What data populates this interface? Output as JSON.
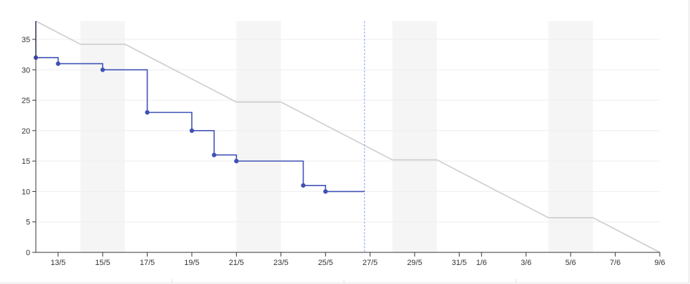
{
  "chart_data": {
    "type": "line",
    "title": "",
    "xlabel": "",
    "ylabel": "",
    "ylim": [
      0,
      38
    ],
    "yticks": [
      0,
      5,
      10,
      15,
      20,
      25,
      30,
      35
    ],
    "x_range": [
      "2024-05-12",
      "2024-06-09"
    ],
    "x_ticks": [
      {
        "date": "2024-05-13",
        "label": "13/5"
      },
      {
        "date": "2024-05-15",
        "label": "15/5"
      },
      {
        "date": "2024-05-17",
        "label": "17/5"
      },
      {
        "date": "2024-05-19",
        "label": "19/5"
      },
      {
        "date": "2024-05-21",
        "label": "21/5"
      },
      {
        "date": "2024-05-23",
        "label": "23/5"
      },
      {
        "date": "2024-05-25",
        "label": "25/5"
      },
      {
        "date": "2024-05-27",
        "label": "27/5"
      },
      {
        "date": "2024-05-29",
        "label": "29/5"
      },
      {
        "date": "2024-05-31",
        "label": "31/5"
      },
      {
        "date": "2024-06-01",
        "label": "1/6"
      },
      {
        "date": "2024-06-03",
        "label": "3/6"
      },
      {
        "date": "2024-06-05",
        "label": "5/6"
      },
      {
        "date": "2024-06-07",
        "label": "7/6"
      },
      {
        "date": "2024-06-09",
        "label": "9/6"
      }
    ],
    "non_working_periods": [
      [
        "2024-05-14",
        "2024-05-16"
      ],
      [
        "2024-05-21",
        "2024-05-23"
      ],
      [
        "2024-05-28",
        "2024-05-30"
      ],
      [
        "2024-06-04",
        "2024-06-06"
      ]
    ],
    "today": "2024-05-26 18:00",
    "grid": true,
    "legend": "none",
    "series": [
      {
        "kind": "ideal",
        "color": "#cccccc",
        "points": [
          [
            "2024-05-12",
            38
          ],
          [
            "2024-05-14",
            34.2
          ],
          [
            "2024-05-16",
            34.2
          ],
          [
            "2024-05-21",
            24.7
          ],
          [
            "2024-05-23",
            24.7
          ],
          [
            "2024-05-28",
            15.2
          ],
          [
            "2024-05-30",
            15.2
          ],
          [
            "2024-06-04",
            5.7
          ],
          [
            "2024-06-06",
            5.7
          ],
          [
            "2024-06-09",
            0
          ]
        ]
      },
      {
        "kind": "actual",
        "color": "#3f51b5",
        "start_value": 38,
        "points": [
          [
            "2024-05-12",
            32
          ],
          [
            "2024-05-13",
            31
          ],
          [
            "2024-05-15",
            30
          ],
          [
            "2024-05-17",
            23
          ],
          [
            "2024-05-19",
            20
          ],
          [
            "2024-05-20",
            16
          ],
          [
            "2024-05-21",
            15
          ],
          [
            "2024-05-24",
            11
          ],
          [
            "2024-05-25",
            10
          ]
        ],
        "end": "2024-05-26 18:00"
      }
    ]
  }
}
